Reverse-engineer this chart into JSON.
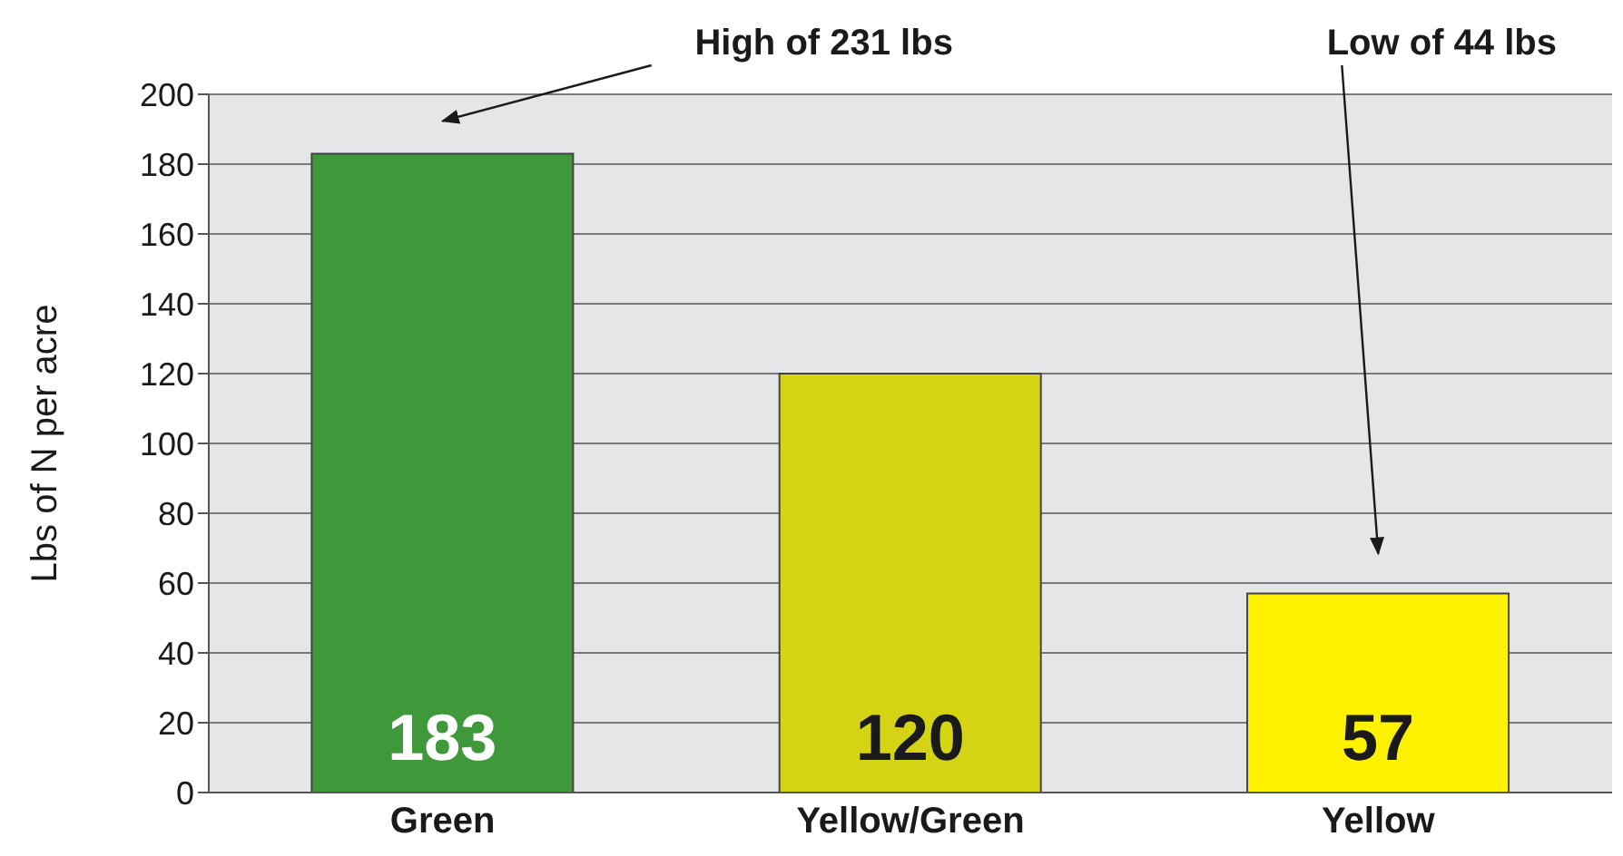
{
  "chart_data": {
    "type": "bar",
    "ylabel": "Lbs of N per acre",
    "categories": [
      "Green",
      "Yellow/Green",
      "Yellow"
    ],
    "values": [
      183,
      120,
      57
    ],
    "colors": [
      "#3f983a",
      "#d4d314",
      "#fff200"
    ],
    "ylim": [
      0,
      200
    ],
    "yticks": [
      0,
      20,
      40,
      60,
      80,
      100,
      120,
      140,
      160,
      180,
      200
    ],
    "grid": "y",
    "data_labels": true,
    "annotations": [
      "High of 231 lbs",
      "Low of 44 lbs"
    ]
  }
}
